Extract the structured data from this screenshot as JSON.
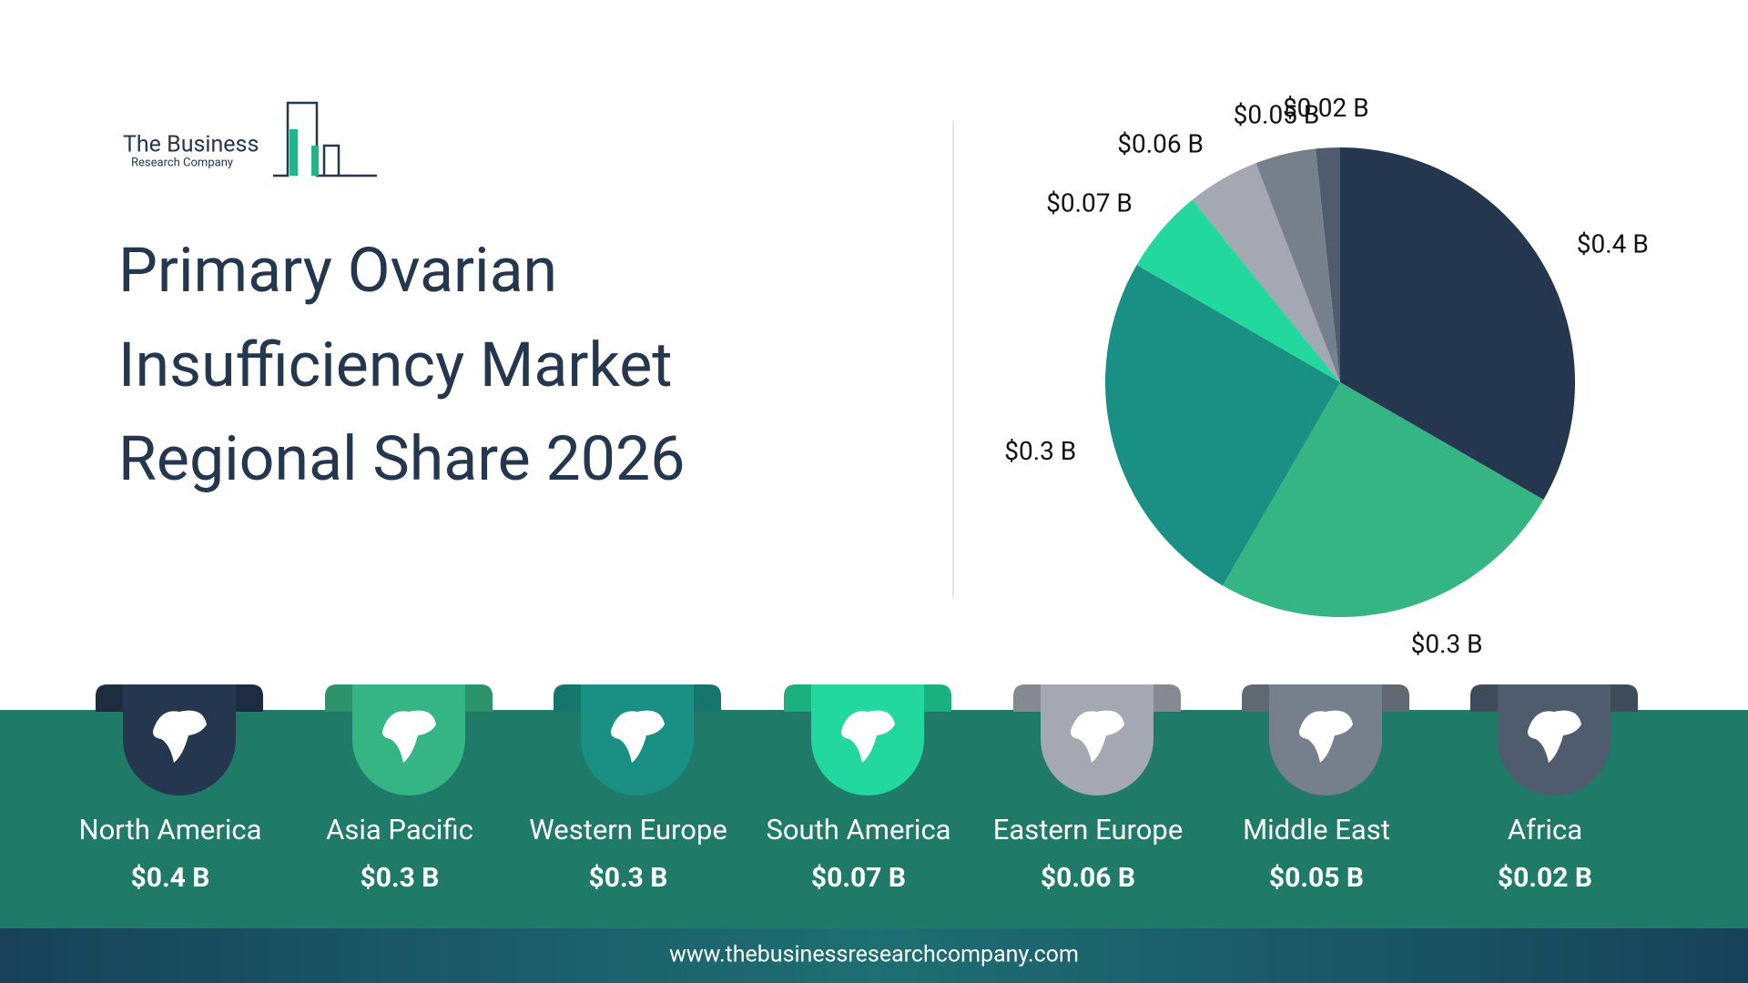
{
  "logo": {
    "line1": "The Business",
    "line2": "Research Company"
  },
  "chart_data": {
    "type": "pie",
    "title": [
      "Primary Ovarian",
      "Insufficiency Market",
      "Regional Share 2026"
    ],
    "categories": [
      "North America",
      "Asia Pacific",
      "Western Europe",
      "South America",
      "Eastern Europe",
      "Middle East",
      "Africa"
    ],
    "values": [
      0.4,
      0.3,
      0.3,
      0.07,
      0.06,
      0.05,
      0.02
    ],
    "value_labels": [
      "$0.4 B",
      "$0.3 B",
      "$0.3 B",
      "$0.07 B",
      "$0.06 B",
      "$0.05 B",
      "$0.02 B"
    ],
    "colors": [
      "#24374e",
      "#35b583",
      "#1a8f84",
      "#22d89c",
      "#a3a8b3",
      "#767f8c",
      "#4f5c6e"
    ]
  },
  "footer": "www.thebusinessresearchcompany.com"
}
